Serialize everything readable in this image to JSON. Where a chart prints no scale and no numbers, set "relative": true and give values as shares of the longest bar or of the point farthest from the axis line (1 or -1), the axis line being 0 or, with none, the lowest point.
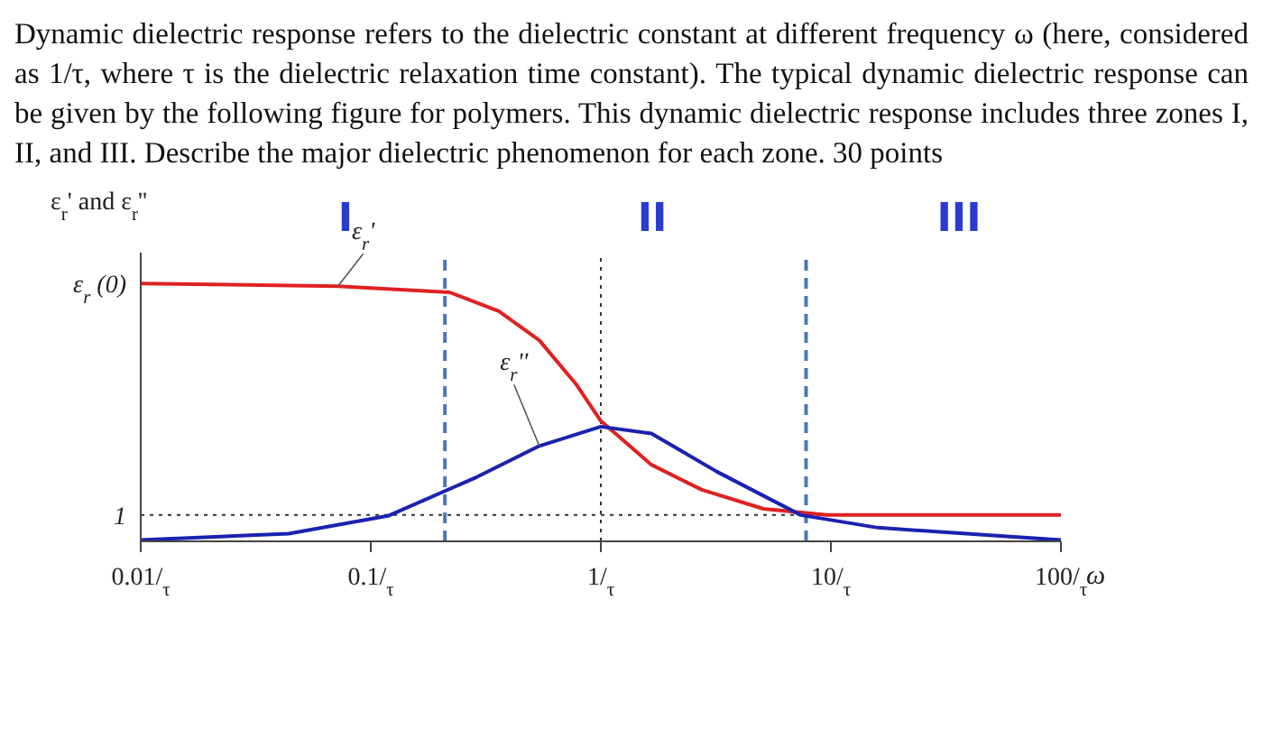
{
  "chart_data": {
    "type": "line",
    "title": "Dynamic dielectric response refers to the dielectric constant at different frequency ω (here, considered as 1/τ, where τ is the dielectric relaxation time constant). The typical dynamic dielectric response can be given by the following figure for polymers. This dynamic dielectric response includes three zones I, II, and III. Describe the major dielectric phenomenon for each zone. 30 points",
    "xlabel": "ω",
    "ylabel": "ε$_{r}$' and ε$_{r}$''",
    "relative": true,
    "log": "x",
    "marker": "none",
    "line_style": "solid",
    "xlim": [
      0.01,
      100
    ],
    "xticks": [
      {
        "value": 0.01,
        "label": "0.01/$_{τ}$"
      },
      {
        "value": 0.1,
        "label": "0.1/$_{τ}$"
      },
      {
        "value": 1,
        "label": "1/$_{τ}$"
      },
      {
        "value": 10,
        "label": "10/$_{τ}$"
      },
      {
        "value": 100,
        "label": "100/$_{τ}$"
      }
    ],
    "series": [
      {
        "name": "ε$_{r}$'",
        "color": "#e02020",
        "x": [
          0.01,
          0.072,
          0.22,
          0.36,
          0.54,
          0.78,
          1.0,
          1.66,
          2.75,
          5.1,
          9.6,
          100
        ],
        "values": [
          1.0,
          0.99,
          0.966,
          0.893,
          0.78,
          0.61,
          0.467,
          0.297,
          0.2,
          0.126,
          0.102,
          0.102
        ]
      },
      {
        "name": "ε$_{r}$''",
        "color": "#1a22b0",
        "x": [
          0.01,
          0.044,
          0.12,
          0.29,
          0.54,
          1.0,
          1.66,
          3.2,
          7.4,
          16,
          100
        ],
        "values": [
          0.005,
          0.03,
          0.1,
          0.25,
          0.37,
          0.445,
          0.418,
          0.27,
          0.102,
          0.053,
          0.005
        ]
      }
    ],
    "ref_lines": [
      {
        "axis": "y",
        "value": 0.102,
        "color": "#333333",
        "line_style": "dotted"
      },
      {
        "axis": "x",
        "value": 1,
        "color": "#333333",
        "line_style": "dotted"
      },
      {
        "axis": "x",
        "value": 0.21,
        "color": "#4a78b8",
        "line_style": "dashed"
      },
      {
        "axis": "x",
        "value": 7.8,
        "color": "#4a78b8",
        "line_style": "dashed"
      }
    ],
    "annotations": [
      {
        "text": "ε$_{r}$ (0)",
        "x": 0.01,
        "y": 1.0
      },
      {
        "text": "1",
        "x": 0.01,
        "y": 0.102
      },
      "I",
      "II",
      "III"
    ]
  }
}
